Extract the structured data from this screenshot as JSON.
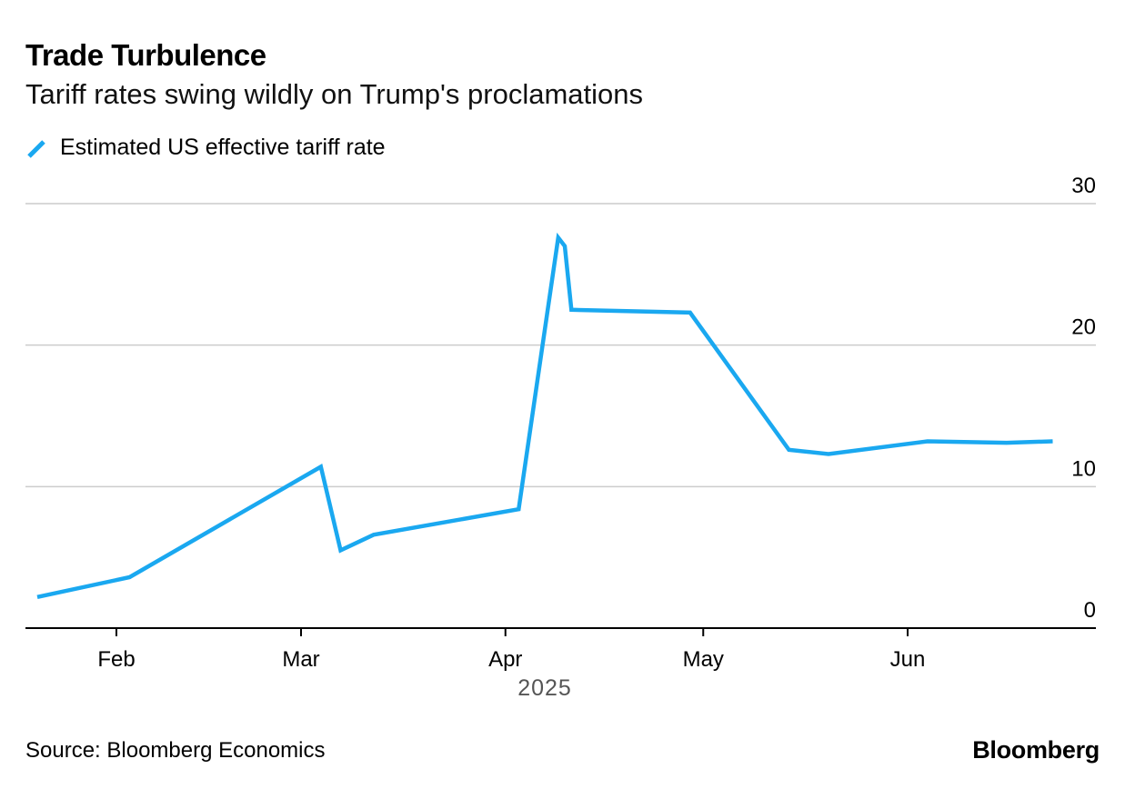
{
  "title": "Trade Turbulence",
  "subtitle": "Tariff rates swing wildly on Trump's proclamations",
  "source": "Source: Bloomberg Economics",
  "brand": "Bloomberg",
  "chart_data": {
    "type": "line",
    "title": "Trade Turbulence",
    "subtitle": "Tariff rates swing wildly on Trump's proclamations",
    "xlabel": "2025",
    "ylabel": "",
    "xlim": [
      "2025-01-16",
      "2025-06-30"
    ],
    "ylim": [
      0,
      30
    ],
    "y_axis_position": "right",
    "grid": true,
    "legend_position": "top-left",
    "x_ticks": [
      {
        "date": "2025-02-01",
        "label": "Feb"
      },
      {
        "date": "2025-03-01",
        "label": "Mar"
      },
      {
        "date": "2025-04-01",
        "label": "Apr"
      },
      {
        "date": "2025-05-01",
        "label": "May"
      },
      {
        "date": "2025-06-01",
        "label": "Jun"
      }
    ],
    "y_ticks": [
      {
        "value": 0,
        "label": "0"
      },
      {
        "value": 10,
        "label": "10"
      },
      {
        "value": 20,
        "label": "20"
      },
      {
        "value": 30,
        "label": "30"
      }
    ],
    "series": [
      {
        "name": "Estimated US effective tariff rate",
        "color": "#1aa8f0",
        "x": [
          "2025-01-20",
          "2025-02-03",
          "2025-03-04",
          "2025-03-07",
          "2025-03-12",
          "2025-04-03",
          "2025-04-09",
          "2025-04-10",
          "2025-04-11",
          "2025-04-29",
          "2025-05-14",
          "2025-05-20",
          "2025-06-04",
          "2025-06-16",
          "2025-06-23"
        ],
        "values": [
          2.2,
          3.6,
          11.4,
          5.5,
          6.6,
          8.4,
          27.6,
          27.0,
          22.5,
          22.3,
          12.6,
          12.3,
          13.2,
          13.1,
          13.2
        ]
      }
    ]
  }
}
